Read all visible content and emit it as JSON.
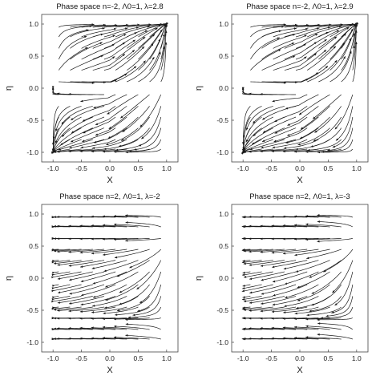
{
  "chart_data": [
    {
      "type": "streamplot",
      "title": "Phase space n=-2, Λ0=1, λ=2.8",
      "xlabel": "X",
      "ylabel": "η",
      "xlim": [
        -1.2,
        1.2
      ],
      "ylim": [
        -1.15,
        1.15
      ],
      "xticks": [
        "-1.0",
        "-0.5",
        "0.0",
        "0.5",
        "1.0"
      ],
      "yticks": [
        "1.0",
        "0.5",
        "0.0",
        "-0.5",
        "-1.0"
      ],
      "params": {
        "n": -2,
        "Lambda0": 1,
        "lambda": 2.8
      },
      "grid": false,
      "legend": "none"
    },
    {
      "type": "streamplot",
      "title": "Phase space n=-2, Λ0=1, λ=2.9",
      "xlabel": "X",
      "ylabel": "η",
      "xlim": [
        -1.2,
        1.2
      ],
      "ylim": [
        -1.15,
        1.15
      ],
      "xticks": [
        "-1.0",
        "-0.5",
        "0.0",
        "0.5",
        "1.0"
      ],
      "yticks": [
        "1.0",
        "0.5",
        "0.0",
        "-0.5",
        "-1.0"
      ],
      "params": {
        "n": -2,
        "Lambda0": 1,
        "lambda": 2.9
      },
      "grid": false,
      "legend": "none"
    },
    {
      "type": "streamplot",
      "title": "Phase space n=2, Λ0=1, λ=-2",
      "xlabel": "X",
      "ylabel": "η",
      "xlim": [
        -1.2,
        1.2
      ],
      "ylim": [
        -1.15,
        1.15
      ],
      "xticks": [
        "-1.0",
        "-0.5",
        "0.0",
        "0.5",
        "1.0"
      ],
      "yticks": [
        "1.0",
        "0.5",
        "0.0",
        "-0.5",
        "-1.0"
      ],
      "params": {
        "n": 2,
        "Lambda0": 1,
        "lambda": -2
      },
      "grid": false,
      "legend": "none"
    },
    {
      "type": "streamplot",
      "title": "Phase space n=2, Λ0=1, λ=-3",
      "xlabel": "X",
      "ylabel": "η",
      "xlim": [
        -1.2,
        1.2
      ],
      "ylim": [
        -1.15,
        1.15
      ],
      "xticks": [
        "-1.0",
        "-0.5",
        "0.0",
        "0.5",
        "1.0"
      ],
      "yticks": [
        "1.0",
        "0.5",
        "0.0",
        "-0.5",
        "-1.0"
      ],
      "params": {
        "n": 2,
        "Lambda0": 1,
        "lambda": -3
      },
      "grid": false,
      "legend": "none"
    }
  ],
  "colors": {
    "stream": "#1a1a1a",
    "frame": "#444444"
  }
}
